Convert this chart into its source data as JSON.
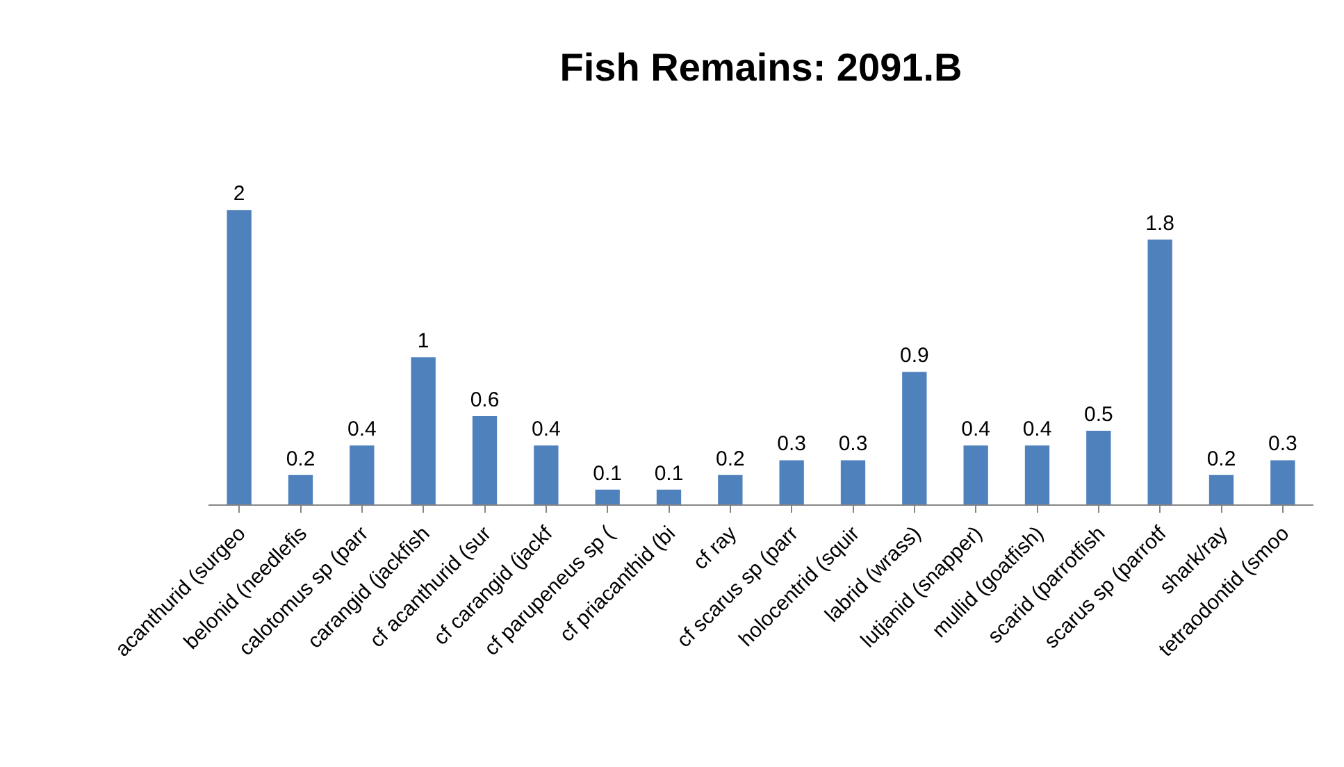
{
  "chart_data": {
    "type": "bar",
    "title": "Fish Remains: 2091.B",
    "categories": [
      "acanthurid (surgeo",
      "belonid (needlefis",
      "calotomus sp (parr",
      "carangid (jackfish",
      "cf acanthurid (sur",
      "cf carangid (jackf",
      "cf parupeneus sp (",
      "cf priacanthid (bi",
      "cf ray",
      "cf scarus sp (parr",
      "holocentrid (squir",
      "labrid (wrass)",
      "lutjanid (snapper)",
      "mullid (goatfish)",
      "scarid (parrotfish",
      "scarus sp (parrotf",
      "shark/ray",
      "tetraodontid (smoo"
    ],
    "values": [
      2,
      0.2,
      0.4,
      1,
      0.6,
      0.4,
      0.1,
      0.1,
      0.2,
      0.3,
      0.3,
      0.9,
      0.4,
      0.4,
      0.5,
      1.8,
      0.2,
      0.3
    ],
    "color": "#4f81bd",
    "data_labels": true
  }
}
